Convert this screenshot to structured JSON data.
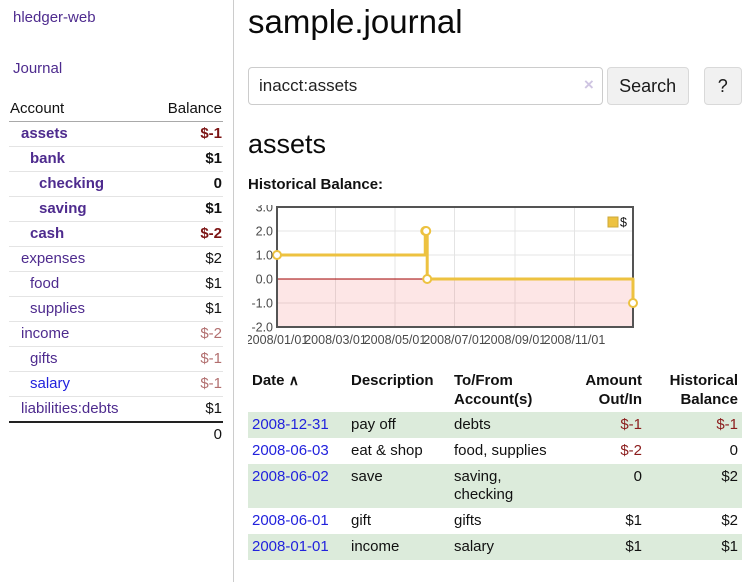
{
  "sidebar": {
    "brand": "hledger-web",
    "nav_journal": "Journal",
    "accounts_table": {
      "headers": {
        "account": "Account",
        "balance": "Balance"
      },
      "rows": [
        {
          "name": "assets",
          "depth": 1,
          "bold": true,
          "balance": "$-1",
          "balance_style": "neg-strong"
        },
        {
          "name": "bank",
          "depth": 2,
          "bold": true,
          "balance": "$1",
          "balance_style": "pos"
        },
        {
          "name": "checking",
          "depth": 3,
          "bold": true,
          "balance": "0",
          "balance_style": "pos"
        },
        {
          "name": "saving",
          "depth": 3,
          "bold": true,
          "balance": "$1",
          "balance_style": "pos"
        },
        {
          "name": "cash",
          "depth": 2,
          "bold": true,
          "balance": "$-2",
          "balance_style": "neg-strong"
        },
        {
          "name": "expenses",
          "depth": 1,
          "bold": false,
          "balance": "$2",
          "balance_style": "pos"
        },
        {
          "name": "food",
          "depth": 2,
          "bold": false,
          "balance": "$1",
          "balance_style": "pos"
        },
        {
          "name": "supplies",
          "depth": 2,
          "bold": false,
          "balance": "$1",
          "balance_style": "pos"
        },
        {
          "name": "income",
          "depth": 1,
          "bold": false,
          "balance": "$-2",
          "balance_style": "neg-dim"
        },
        {
          "name": "gifts",
          "depth": 2,
          "bold": false,
          "balance": "$-1",
          "balance_style": "neg-dim"
        },
        {
          "name": "salary",
          "depth": 2,
          "bold": false,
          "balance": "$-1",
          "balance_style": "neg-dim",
          "link_unvisited": true
        },
        {
          "name": "liabilities:debts",
          "depth": 1,
          "bold": false,
          "balance": "$1",
          "balance_style": "pos"
        }
      ],
      "total": "0"
    }
  },
  "main": {
    "title": "sample.journal",
    "search": {
      "value": "inacct:assets",
      "clear_icon": "×",
      "button_label": "Search",
      "help_label": "?"
    },
    "account_heading": "assets",
    "chart_label": "Historical Balance:",
    "register_table": {
      "headers": {
        "date": "Date",
        "sort_icon": "∧",
        "description": "Description",
        "tofrom_line1": "To/From",
        "tofrom_line2": "Account(s)",
        "amount_line1": "Amount",
        "amount_line2": "Out/In",
        "balance_line1": "Historical",
        "balance_line2": "Balance"
      },
      "rows": [
        {
          "date": "2008-12-31",
          "description": "pay off",
          "accounts": "debts",
          "amount": "$-1",
          "amount_neg": true,
          "balance": "$-1",
          "balance_neg": true,
          "shaded": true
        },
        {
          "date": "2008-06-03",
          "description": "eat & shop",
          "accounts": "food, supplies",
          "amount": "$-2",
          "amount_neg": true,
          "balance": "0",
          "balance_neg": false,
          "shaded": false
        },
        {
          "date": "2008-06-02",
          "description": "save",
          "accounts": "saving, checking",
          "amount": "0",
          "amount_neg": false,
          "balance": "$2",
          "balance_neg": false,
          "shaded": true
        },
        {
          "date": "2008-06-01",
          "description": "gift",
          "accounts": "gifts",
          "amount": "$1",
          "amount_neg": false,
          "balance": "$2",
          "balance_neg": false,
          "shaded": false
        },
        {
          "date": "2008-01-01",
          "description": "income",
          "accounts": "salary",
          "amount": "$1",
          "amount_neg": false,
          "balance": "$1",
          "balance_neg": false,
          "shaded": true
        }
      ]
    }
  },
  "chart_data": {
    "type": "line",
    "mode": "steps",
    "title": "Historical Balance",
    "series": [
      {
        "name": "$",
        "color": "#edc240",
        "points": [
          [
            "2008-01-01",
            1
          ],
          [
            "2008-06-01",
            2
          ],
          [
            "2008-06-02",
            2
          ],
          [
            "2008-06-03",
            0
          ],
          [
            "2008-12-31",
            -1
          ]
        ]
      }
    ],
    "x_range": [
      "2008-01-01",
      "2008-12-31"
    ],
    "ylim": [
      -2,
      3
    ],
    "y_ticks": [
      "3.0",
      "2.0",
      "1.0",
      "0.0",
      "-1.0",
      "-2.0"
    ],
    "x_tick_labels": [
      "2008/01/01",
      "2008/03/01",
      "2008/05/01",
      "2008/07/01",
      "2008/09/01",
      "2008/11/01"
    ],
    "x_tick_dates": [
      "2008-01-01",
      "2008-03-01",
      "2008-05-01",
      "2008-07-01",
      "2008-09-01",
      "2008-11-01"
    ],
    "grid": true,
    "negative_region_shaded": true,
    "legend_position": "top-right"
  },
  "colors": {
    "link_visited_purple": "#4e2b8e",
    "link_blue": "#2222dd",
    "negative_strong": "#7c1414",
    "negative_table": "#8b1c1c",
    "negative_dim": "#b26f6f",
    "row_shade_green": "#dcebdb",
    "series_gold": "#edc240",
    "zero_line_red": "#a00000",
    "negative_region_pink": "rgba(240,100,100,0.16)"
  }
}
